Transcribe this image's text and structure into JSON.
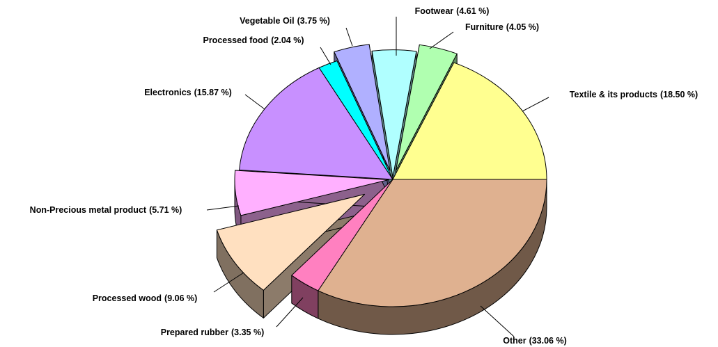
{
  "chart_data": {
    "type": "pie3d",
    "categories": [
      "Other",
      "Prepared rubber",
      "Processed wood",
      "Non-Precious metal product",
      "Electronics",
      "Processed food",
      "Vegetable Oil",
      "Footwear",
      "Furniture",
      "Textile & its products"
    ],
    "values": [
      33.06,
      3.35,
      9.06,
      5.71,
      15.87,
      2.04,
      3.75,
      4.61,
      4.05,
      18.5
    ],
    "value_labels": [
      "(33.06 %)",
      "(3.35 %)",
      "(9.06 %)",
      "(5.71 %)",
      "(15.87 %)",
      "(2.04 %)",
      "(3.75 %)",
      "(4.61 %)",
      "(4.05 %)",
      "(18.50 %)"
    ],
    "colors": [
      "#dfb190",
      "#ff80c0",
      "#ffe0c0",
      "#ffb0ff",
      "#c890ff",
      "#00ffff",
      "#b0b0ff",
      "#b0ffff",
      "#b0ffb0",
      "#ffff90"
    ]
  }
}
